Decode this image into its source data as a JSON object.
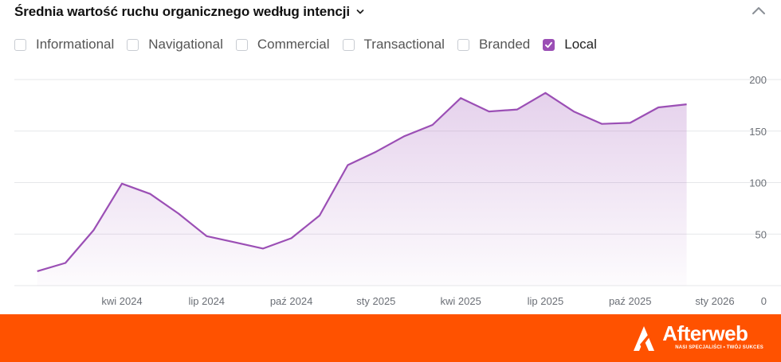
{
  "header": {
    "title": "Średnia wartość ruchu organicznego według intencji"
  },
  "legend": {
    "items": [
      {
        "label": "Informational",
        "checked": false
      },
      {
        "label": "Navigational",
        "checked": false
      },
      {
        "label": "Commercial",
        "checked": false
      },
      {
        "label": "Transactional",
        "checked": false
      },
      {
        "label": "Branded",
        "checked": false
      },
      {
        "label": "Local",
        "checked": true
      }
    ]
  },
  "colors": {
    "series": "#9b4fb5",
    "footer": "#ff5200",
    "grid": "#e6e7ea"
  },
  "chart_data": {
    "type": "area",
    "title": "Średnia wartość ruchu organicznego według intencji",
    "xlabel": "",
    "ylabel": "",
    "ylim": [
      0,
      200
    ],
    "yticks": [
      0,
      50,
      100,
      150,
      200
    ],
    "x_tick_labels": [
      "kwi 2024",
      "lip 2024",
      "paź 2024",
      "sty 2025",
      "kwi 2025",
      "lip 2025",
      "paź 2025",
      "sty 2026"
    ],
    "x_tick_dates": [
      "2024-04",
      "2024-07",
      "2024-10",
      "2025-01",
      "2025-04",
      "2025-07",
      "2025-10",
      "2026-01"
    ],
    "grid": true,
    "legend_placement": "top-left",
    "series": [
      {
        "name": "Local",
        "color": "#9b4fb5",
        "x": [
          "2024-01",
          "2024-02",
          "2024-03",
          "2024-04",
          "2024-05",
          "2024-06",
          "2024-07",
          "2024-08",
          "2024-09",
          "2024-10",
          "2024-11",
          "2024-12",
          "2025-01",
          "2025-02",
          "2025-03",
          "2025-04",
          "2025-05",
          "2025-06",
          "2025-07",
          "2025-08",
          "2025-09",
          "2025-10",
          "2025-11",
          "2025-12",
          "2026-01"
        ],
        "values": [
          14,
          22,
          54,
          99,
          89,
          70,
          48,
          42,
          36,
          46,
          68,
          117,
          130,
          145,
          156,
          182,
          169,
          171,
          187,
          169,
          157,
          158,
          173,
          176,
          null
        ]
      }
    ]
  },
  "footer": {
    "brand_name": "Afterweb",
    "tagline": "NASI SPECJALIŚCI • TWÓJ SUKCES"
  }
}
